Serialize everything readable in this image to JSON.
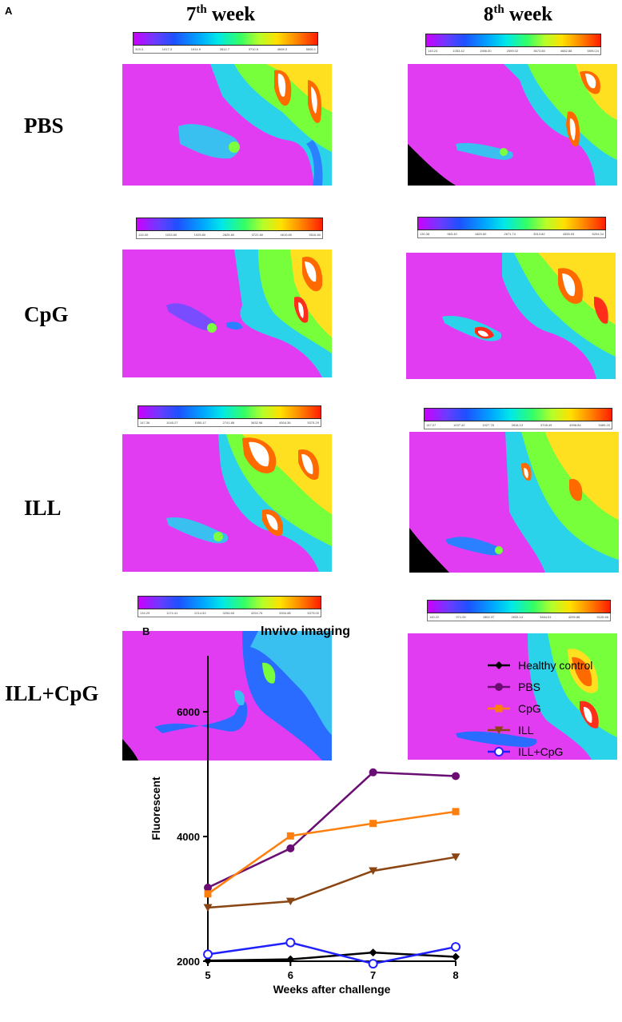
{
  "panel_a_label": "A",
  "panel_b_label": "B",
  "columns": [
    {
      "num": "7",
      "sup": "th",
      "word": " week"
    },
    {
      "num": "8",
      "sup": "th",
      "word": " week"
    }
  ],
  "rows": [
    "PBS",
    "CpG",
    "ILL",
    "ILL+CpG"
  ],
  "colorbars": [
    {
      "ticks": [
        "319.3",
        "1017.3",
        "1914.9",
        "2812.7",
        "3710.5",
        "4608.3",
        "5506.1"
      ]
    },
    {
      "ticks": [
        "145.24",
        "1053.42",
        "1986.00",
        "2599.02",
        "3673.85",
        "4682.88",
        "5590.24"
      ]
    },
    {
      "ticks": [
        "134.00",
        "1033.80",
        "1925.80",
        "2825.80",
        "3722.80",
        "4619.80",
        "5516.80"
      ]
    },
    {
      "ticks": [
        "130.38",
        "963.49",
        "1825.60",
        "2671.74",
        "3513.82",
        "4355.93",
        "5204.04"
      ]
    },
    {
      "ticks": [
        "147.36",
        "1045.27",
        "1950.47",
        "2741.88",
        "3632.96",
        "4504.36",
        "5375.29"
      ]
    },
    {
      "ticks": [
        "147.07",
        "1037.42",
        "1927.78",
        "2818.13",
        "3708.49",
        "4598.84",
        "5489.20"
      ]
    },
    {
      "ticks": [
        "134.29",
        "1174.41",
        "2214.53",
        "3254.65",
        "4294.76",
        "5334.88",
        "6375.00"
      ]
    },
    {
      "ticks": [
        "140.22",
        "971.00",
        "1802.37",
        "2633.14",
        "3464.51",
        "4295.88",
        "5126.66"
      ]
    }
  ],
  "chart_data": {
    "type": "line",
    "title": "Invivo imaging",
    "xlabel": "Weeks after challenge",
    "ylabel": "Fluorescent",
    "x": [
      5,
      6,
      7,
      8
    ],
    "xticks": [
      "5",
      "6",
      "7",
      "8"
    ],
    "yticks": [
      "2000",
      "4000",
      "6000"
    ],
    "xlim": [
      5,
      8
    ],
    "ylim": [
      2000,
      6900
    ],
    "legend_position": "right",
    "series": [
      {
        "name": "Healthy control",
        "values": [
          2010,
          2030,
          2140,
          2070
        ],
        "color": "#000000",
        "marker": "diamond"
      },
      {
        "name": "PBS",
        "values": [
          3180,
          3810,
          5030,
          4970
        ],
        "color": "#6a0d73",
        "marker": "circle"
      },
      {
        "name": "CpG",
        "values": [
          3080,
          4010,
          4210,
          4400
        ],
        "color": "#ff7f0e",
        "marker": "square"
      },
      {
        "name": "ILL",
        "values": [
          2860,
          2960,
          3450,
          3670
        ],
        "color": "#8b4513",
        "marker": "triangle-down"
      },
      {
        "name": "ILL+CpG",
        "values": [
          2110,
          2300,
          1960,
          2230
        ],
        "color": "#1f1fff",
        "marker": "open-circle"
      }
    ]
  }
}
